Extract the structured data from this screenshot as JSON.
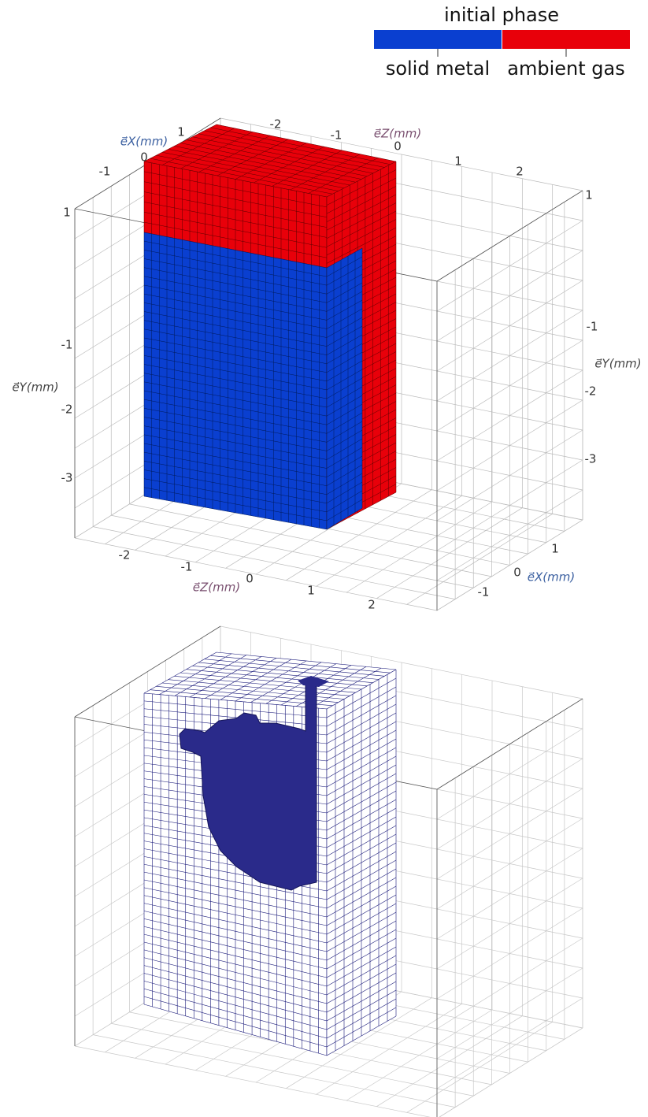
{
  "legend": {
    "title": "initial phase",
    "items": [
      {
        "label": "solid metal",
        "color": "#0a3fd0"
      },
      {
        "label": "ambient gas",
        "color": "#e8000a"
      }
    ]
  },
  "top_panel": {
    "axis_labels": {
      "ex_top": "e⃗X(mm)",
      "ez_top": "e⃗Z(mm)",
      "ey_left": "e⃗Y(mm)",
      "ey_right": "e⃗Y(mm)",
      "ez_bottom": "e⃗Z(mm)",
      "ex_bottom": "e⃗X(mm)"
    },
    "tick_labels": [
      "0",
      "1",
      "-1",
      "-2",
      "-1",
      "0",
      "1",
      "2",
      "1",
      "-1",
      "-2",
      "-3",
      "1",
      "-1",
      "-2",
      "-3",
      "-2",
      "-1",
      "0",
      "1",
      "2",
      "1",
      "0",
      "-1"
    ]
  }
}
